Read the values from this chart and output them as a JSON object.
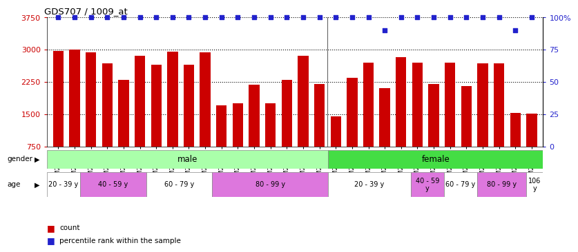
{
  "title": "GDS707 / 1009_at",
  "samples": [
    "GSM27015",
    "GSM27016",
    "GSM27018",
    "GSM27021",
    "GSM27023",
    "GSM27024",
    "GSM27025",
    "GSM27027",
    "GSM27028",
    "GSM27031",
    "GSM27032",
    "GSM27034",
    "GSM27035",
    "GSM27036",
    "GSM27038",
    "GSM27040",
    "GSM27042",
    "GSM27043",
    "GSM27017",
    "GSM27019",
    "GSM27020",
    "GSM27022",
    "GSM27026",
    "GSM27029",
    "GSM27030",
    "GSM27033",
    "GSM27037",
    "GSM27039",
    "GSM27041",
    "GSM27044"
  ],
  "counts": [
    2970,
    3000,
    2940,
    2680,
    2300,
    2850,
    2650,
    2950,
    2650,
    2940,
    1700,
    1750,
    2190,
    1750,
    2300,
    2850,
    2200,
    1450,
    2350,
    2700,
    2100,
    2820,
    2700,
    2200,
    2700,
    2150,
    2680,
    2680,
    1530,
    1520
  ],
  "percentile_ranks": [
    100,
    100,
    100,
    100,
    100,
    100,
    100,
    100,
    100,
    100,
    100,
    100,
    100,
    100,
    100,
    100,
    100,
    100,
    100,
    100,
    90,
    100,
    100,
    100,
    100,
    100,
    100,
    100,
    90,
    100
  ],
  "bar_color": "#cc0000",
  "dot_color": "#2222cc",
  "ymin": 750,
  "ymax": 3750,
  "yticks_left": [
    750,
    1500,
    2250,
    3000,
    3750
  ],
  "yticks_right": [
    0,
    25,
    50,
    75,
    100
  ],
  "male_count": 17,
  "female_count": 13,
  "male_color": "#aaffaa",
  "female_color": "#44dd44",
  "age_groups": [
    {
      "label": "20 - 39 y",
      "start": 0,
      "end": 2,
      "color": "#ffffff"
    },
    {
      "label": "40 - 59 y",
      "start": 2,
      "end": 6,
      "color": "#dd77dd"
    },
    {
      "label": "60 - 79 y",
      "start": 6,
      "end": 10,
      "color": "#ffffff"
    },
    {
      "label": "80 - 99 y",
      "start": 10,
      "end": 17,
      "color": "#dd77dd"
    },
    {
      "label": "20 - 39 y",
      "start": 17,
      "end": 22,
      "color": "#ffffff"
    },
    {
      "label": "40 - 59\ny",
      "start": 22,
      "end": 24,
      "color": "#dd77dd"
    },
    {
      "label": "60 - 79 y",
      "start": 24,
      "end": 26,
      "color": "#ffffff"
    },
    {
      "label": "80 - 99 y",
      "start": 26,
      "end": 29,
      "color": "#dd77dd"
    },
    {
      "label": "106\ny",
      "start": 29,
      "end": 30,
      "color": "#ffffff"
    }
  ],
  "tick_color_left": "#cc0000",
  "tick_color_right": "#2222cc",
  "bg_color": "#ffffff"
}
